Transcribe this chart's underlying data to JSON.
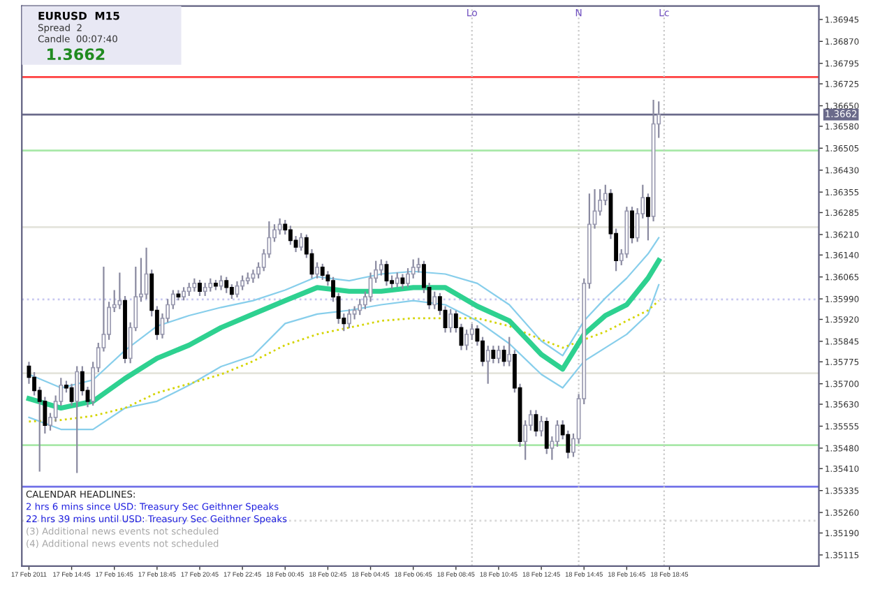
{
  "chart_data": {
    "type": "candlestick",
    "title": "EURUSD  M15",
    "annotations": [
      "Spread  2",
      "Candle  00:07:40",
      "1.3662",
      "CALENDAR HEADLINES:",
      "2 hrs 6 mins since USD: Treasury Sec Geithner Speaks",
      "22 hrs 39 mins until USD: Treasury Sec Geithner Speaks",
      "(3) Additional news events not scheduled",
      "(4) Additional news events not scheduled"
    ],
    "x": [
      "2011-02-17T12:45",
      "2011-02-17T13:00",
      "2011-02-17T13:15",
      "2011-02-17T13:30",
      "2011-02-17T13:45",
      "2011-02-17T14:00",
      "2011-02-17T14:15",
      "2011-02-17T14:30",
      "2011-02-17T14:45",
      "2011-02-17T15:00",
      "2011-02-17T15:15",
      "2011-02-17T15:30",
      "2011-02-17T15:45",
      "2011-02-17T16:00",
      "2011-02-17T16:15",
      "2011-02-17T16:30",
      "2011-02-17T16:45",
      "2011-02-17T17:00",
      "2011-02-17T17:15",
      "2011-02-17T17:30",
      "2011-02-17T17:45",
      "2011-02-17T18:00",
      "2011-02-17T18:15",
      "2011-02-17T18:30",
      "2011-02-17T18:45",
      "2011-02-17T19:00",
      "2011-02-17T19:15",
      "2011-02-17T19:30",
      "2011-02-17T19:45",
      "2011-02-17T20:00",
      "2011-02-17T20:15",
      "2011-02-17T20:30",
      "2011-02-17T20:45",
      "2011-02-17T21:00",
      "2011-02-17T21:15",
      "2011-02-17T21:30",
      "2011-02-17T21:45",
      "2011-02-17T22:00",
      "2011-02-17T22:15",
      "2011-02-17T22:30",
      "2011-02-17T22:45",
      "2011-02-17T23:00",
      "2011-02-17T23:15",
      "2011-02-17T23:30",
      "2011-02-17T23:45",
      "2011-02-18T00:00",
      "2011-02-18T00:15",
      "2011-02-18T00:30",
      "2011-02-18T00:45",
      "2011-02-18T01:00",
      "2011-02-18T01:15",
      "2011-02-18T01:30",
      "2011-02-18T01:45",
      "2011-02-18T02:00",
      "2011-02-18T02:15",
      "2011-02-18T02:30",
      "2011-02-18T02:45",
      "2011-02-18T03:00",
      "2011-02-18T03:15",
      "2011-02-18T03:30",
      "2011-02-18T03:45",
      "2011-02-18T04:00",
      "2011-02-18T04:15",
      "2011-02-18T04:30",
      "2011-02-18T04:45",
      "2011-02-18T05:00",
      "2011-02-18T05:15",
      "2011-02-18T05:30",
      "2011-02-18T05:45",
      "2011-02-18T06:00",
      "2011-02-18T06:15",
      "2011-02-18T06:30",
      "2011-02-18T06:45",
      "2011-02-18T07:00",
      "2011-02-18T07:15",
      "2011-02-18T07:30",
      "2011-02-18T07:45",
      "2011-02-18T08:00",
      "2011-02-18T08:15",
      "2011-02-18T08:30",
      "2011-02-18T08:45",
      "2011-02-18T09:00",
      "2011-02-18T09:15",
      "2011-02-18T09:30",
      "2011-02-18T09:45",
      "2011-02-18T10:00",
      "2011-02-18T10:15",
      "2011-02-18T10:30",
      "2011-02-18T10:45",
      "2011-02-18T11:00",
      "2011-02-18T11:15",
      "2011-02-18T11:30",
      "2011-02-18T11:45",
      "2011-02-18T12:00",
      "2011-02-18T12:15",
      "2011-02-18T12:30",
      "2011-02-18T12:45",
      "2011-02-18T13:00",
      "2011-02-18T13:15",
      "2011-02-18T13:30",
      "2011-02-18T13:45",
      "2011-02-18T14:00",
      "2011-02-18T14:15",
      "2011-02-18T14:30",
      "2011-02-18T14:45",
      "2011-02-18T15:00",
      "2011-02-18T15:15",
      "2011-02-18T15:30",
      "2011-02-18T15:45",
      "2011-02-18T16:00",
      "2011-02-18T16:15",
      "2011-02-18T16:30",
      "2011-02-18T16:45",
      "2011-02-18T17:00",
      "2011-02-18T17:15",
      "2011-02-18T17:30",
      "2011-02-18T17:45",
      "2011-02-18T18:00",
      "2011-02-18T18:15"
    ],
    "ohlc": [
      [
        1.3576,
        1.35775,
        1.357,
        1.35722
      ],
      [
        1.35722,
        1.3574,
        1.3566,
        1.35677
      ],
      [
        1.35677,
        1.3569,
        1.354,
        1.3564
      ],
      [
        1.3564,
        1.35655,
        1.3553,
        1.35558
      ],
      [
        1.35558,
        1.356,
        1.3554,
        1.35585
      ],
      [
        1.35585,
        1.3566,
        1.3557,
        1.3564
      ],
      [
        1.3564,
        1.3572,
        1.35625,
        1.35695
      ],
      [
        1.35695,
        1.3571,
        1.3567,
        1.35686
      ],
      [
        1.35686,
        1.357,
        1.35625,
        1.3564
      ],
      [
        1.3564,
        1.3576,
        1.35395,
        1.35741
      ],
      [
        1.35741,
        1.3576,
        1.3566,
        1.35677
      ],
      [
        1.35677,
        1.3569,
        1.3562,
        1.3564
      ],
      [
        1.3564,
        1.35775,
        1.35625,
        1.35755
      ],
      [
        1.35755,
        1.3584,
        1.3574,
        1.35823
      ],
      [
        1.35823,
        1.361,
        1.3581,
        1.35869
      ],
      [
        1.35869,
        1.3598,
        1.3585,
        1.35961
      ],
      [
        1.35961,
        1.3602,
        1.35945,
        1.3597
      ],
      [
        1.3597,
        1.3608,
        1.35955,
        1.35984
      ],
      [
        1.35984,
        1.36,
        1.3577,
        1.35787
      ],
      [
        1.35787,
        1.3591,
        1.3577,
        1.35892
      ],
      [
        1.35892,
        1.361,
        1.3588,
        1.35997
      ],
      [
        1.35997,
        1.3613,
        1.3598,
        1.36006
      ],
      [
        1.36006,
        1.36165,
        1.3599,
        1.36075
      ],
      [
        1.36075,
        1.3609,
        1.3593,
        1.35951
      ],
      [
        1.35951,
        1.35965,
        1.3585,
        1.35869
      ],
      [
        1.35869,
        1.3594,
        1.35855,
        1.35924
      ],
      [
        1.35924,
        1.3599,
        1.3591,
        1.3597
      ],
      [
        1.3597,
        1.3602,
        1.35955,
        1.36006
      ],
      [
        1.36006,
        1.3602,
        1.35985,
        1.35997
      ],
      [
        1.35997,
        1.3603,
        1.35985,
        1.36016
      ],
      [
        1.36016,
        1.36045,
        1.36,
        1.36029
      ],
      [
        1.36029,
        1.3606,
        1.36015,
        1.36043
      ],
      [
        1.36043,
        1.36055,
        1.36,
        1.36016
      ],
      [
        1.36016,
        1.36045,
        1.36,
        1.36029
      ],
      [
        1.36029,
        1.3606,
        1.36015,
        1.36043
      ],
      [
        1.36043,
        1.36055,
        1.3602,
        1.36034
      ],
      [
        1.36034,
        1.3607,
        1.3602,
        1.36052
      ],
      [
        1.36052,
        1.36065,
        1.3601,
        1.36029
      ],
      [
        1.36029,
        1.3604,
        1.3599,
        1.36006
      ],
      [
        1.36006,
        1.3605,
        1.35995,
        1.36034
      ],
      [
        1.36034,
        1.3607,
        1.3602,
        1.36052
      ],
      [
        1.36052,
        1.3608,
        1.3604,
        1.36061
      ],
      [
        1.36061,
        1.3609,
        1.36045,
        1.36075
      ],
      [
        1.36075,
        1.36115,
        1.3606,
        1.36098
      ],
      [
        1.36098,
        1.3616,
        1.36085,
        1.36144
      ],
      [
        1.36144,
        1.36255,
        1.3613,
        1.36199
      ],
      [
        1.36199,
        1.36245,
        1.36185,
        1.36226
      ],
      [
        1.36226,
        1.36265,
        1.3621,
        1.36245
      ],
      [
        1.36245,
        1.3626,
        1.3621,
        1.36226
      ],
      [
        1.36226,
        1.3624,
        1.36175,
        1.3619
      ],
      [
        1.3619,
        1.36205,
        1.3615,
        1.36167
      ],
      [
        1.36167,
        1.36215,
        1.36155,
        1.36199
      ],
      [
        1.36199,
        1.3621,
        1.3613,
        1.36144
      ],
      [
        1.36144,
        1.3616,
        1.3606,
        1.36075
      ],
      [
        1.36075,
        1.36115,
        1.3606,
        1.36098
      ],
      [
        1.36098,
        1.3611,
        1.36055,
        1.36071
      ],
      [
        1.36071,
        1.36085,
        1.36035,
        1.36052
      ],
      [
        1.36052,
        1.36065,
        1.3598,
        1.35997
      ],
      [
        1.35997,
        1.3601,
        1.35905,
        1.35924
      ],
      [
        1.35924,
        1.3594,
        1.3588,
        1.35906
      ],
      [
        1.35906,
        1.35955,
        1.3589,
        1.35938
      ],
      [
        1.35938,
        1.35965,
        1.3592,
        1.35951
      ],
      [
        1.35951,
        1.3599,
        1.35935,
        1.3597
      ],
      [
        1.3597,
        1.36015,
        1.35955,
        1.35997
      ],
      [
        1.35997,
        1.3608,
        1.3598,
        1.36061
      ],
      [
        1.36061,
        1.3612,
        1.36045,
        1.36089
      ],
      [
        1.36089,
        1.36125,
        1.3607,
        1.36107
      ],
      [
        1.36107,
        1.3612,
        1.36035,
        1.36052
      ],
      [
        1.36052,
        1.3607,
        1.36025,
        1.36043
      ],
      [
        1.36043,
        1.3608,
        1.3603,
        1.36061
      ],
      [
        1.36061,
        1.36075,
        1.36025,
        1.36043
      ],
      [
        1.36043,
        1.36095,
        1.3603,
        1.36075
      ],
      [
        1.36075,
        1.36125,
        1.3606,
        1.36098
      ],
      [
        1.36098,
        1.3613,
        1.3608,
        1.36107
      ],
      [
        1.36107,
        1.3612,
        1.3601,
        1.36029
      ],
      [
        1.36029,
        1.36045,
        1.35955,
        1.3597
      ],
      [
        1.3597,
        1.36015,
        1.35955,
        1.35997
      ],
      [
        1.35997,
        1.3601,
        1.35935,
        1.35951
      ],
      [
        1.35951,
        1.35965,
        1.35875,
        1.35892
      ],
      [
        1.35892,
        1.35955,
        1.35875,
        1.35938
      ],
      [
        1.35938,
        1.3595,
        1.35875,
        1.35892
      ],
      [
        1.35892,
        1.35905,
        1.35815,
        1.35832
      ],
      [
        1.35832,
        1.35885,
        1.35815,
        1.35869
      ],
      [
        1.35869,
        1.35905,
        1.3585,
        1.35887
      ],
      [
        1.35887,
        1.359,
        1.3583,
        1.35846
      ],
      [
        1.35846,
        1.3586,
        1.3576,
        1.35777
      ],
      [
        1.35777,
        1.3583,
        1.357,
        1.35814
      ],
      [
        1.35814,
        1.3583,
        1.3577,
        1.35787
      ],
      [
        1.35787,
        1.3583,
        1.3577,
        1.35814
      ],
      [
        1.35814,
        1.3583,
        1.3576,
        1.35777
      ],
      [
        1.35777,
        1.3586,
        1.3576,
        1.358
      ],
      [
        1.358,
        1.35815,
        1.3567,
        1.35686
      ],
      [
        1.35686,
        1.357,
        1.35485,
        1.35503
      ],
      [
        1.35503,
        1.35575,
        1.3544,
        1.35558
      ],
      [
        1.35558,
        1.3561,
        1.3554,
        1.35594
      ],
      [
        1.35594,
        1.3561,
        1.3552,
        1.35539
      ],
      [
        1.35539,
        1.3559,
        1.3552,
        1.35571
      ],
      [
        1.35571,
        1.35585,
        1.3546,
        1.3548
      ],
      [
        1.3548,
        1.3552,
        1.3544,
        1.35503
      ],
      [
        1.35503,
        1.35575,
        1.35485,
        1.35558
      ],
      [
        1.35558,
        1.35575,
        1.3551,
        1.35526
      ],
      [
        1.35526,
        1.3554,
        1.35445,
        1.35466
      ],
      [
        1.35466,
        1.3553,
        1.3545,
        1.35512
      ],
      [
        1.35512,
        1.35665,
        1.35495,
        1.35649
      ],
      [
        1.35649,
        1.3606,
        1.3563,
        1.36043
      ],
      [
        1.36043,
        1.3635,
        1.36025,
        1.36245
      ],
      [
        1.36245,
        1.36365,
        1.3623,
        1.3629
      ],
      [
        1.3629,
        1.36365,
        1.36275,
        1.36327
      ],
      [
        1.36327,
        1.3638,
        1.3631,
        1.3635
      ],
      [
        1.3635,
        1.36365,
        1.36195,
        1.36213
      ],
      [
        1.36213,
        1.3623,
        1.36085,
        1.36121
      ],
      [
        1.36121,
        1.3616,
        1.36105,
        1.36144
      ],
      [
        1.36144,
        1.36305,
        1.3613,
        1.3629
      ],
      [
        1.3629,
        1.36305,
        1.3618,
        1.36199
      ],
      [
        1.36199,
        1.363,
        1.36185,
        1.36281
      ],
      [
        1.36281,
        1.3638,
        1.36265,
        1.36336
      ],
      [
        1.36336,
        1.3635,
        1.3619,
        1.36272
      ],
      [
        1.36272,
        1.3667,
        1.36255,
        1.36588
      ],
      [
        1.36588,
        1.36665,
        1.3654,
        1.3662
      ]
    ],
    "series": [
      {
        "type": "line",
        "color": "#87ceeb",
        "x": [
          "2011-02-17T12:45",
          "2011-02-17T14:15",
          "2011-02-17T15:45",
          "2011-02-17T17:15",
          "2011-02-17T18:45",
          "2011-02-17T20:15",
          "2011-02-17T21:45",
          "2011-02-17T23:15",
          "2011-02-18T00:45",
          "2011-02-18T02:15",
          "2011-02-18T03:45",
          "2011-02-18T05:15",
          "2011-02-18T06:45",
          "2011-02-18T08:15",
          "2011-02-18T09:45",
          "2011-02-18T11:15",
          "2011-02-18T12:45",
          "2011-02-18T13:45",
          "2011-02-18T14:45",
          "2011-02-18T15:45",
          "2011-02-18T16:45",
          "2011-02-18T17:45",
          "2011-02-18T18:15"
        ],
        "values": [
          1.35732,
          1.35686,
          1.35713,
          1.35814,
          1.35897,
          1.35933,
          1.35961,
          1.35984,
          1.3602,
          1.36066,
          1.36052,
          1.36075,
          1.36084,
          1.36075,
          1.36043,
          1.3597,
          1.35846,
          1.35796,
          1.35915,
          1.35993,
          1.36061,
          1.36144,
          1.36199
        ]
      },
      {
        "type": "line",
        "color": "#87ceeb",
        "x": [
          "2011-02-17T12:45",
          "2011-02-17T14:15",
          "2011-02-17T15:45",
          "2011-02-17T17:15",
          "2011-02-17T18:45",
          "2011-02-17T20:15",
          "2011-02-17T21:45",
          "2011-02-17T23:15",
          "2011-02-18T00:45",
          "2011-02-18T02:15",
          "2011-02-18T03:45",
          "2011-02-18T05:15",
          "2011-02-18T06:45",
          "2011-02-18T08:15",
          "2011-02-18T09:45",
          "2011-02-18T11:15",
          "2011-02-18T12:45",
          "2011-02-18T13:45",
          "2011-02-18T14:45",
          "2011-02-18T15:45",
          "2011-02-18T16:45",
          "2011-02-18T17:45",
          "2011-02-18T18:15"
        ],
        "values": [
          1.35585,
          1.35544,
          1.35544,
          1.35617,
          1.3564,
          1.35695,
          1.35759,
          1.35796,
          1.35906,
          1.35938,
          1.35951,
          1.3597,
          1.35984,
          1.3597,
          1.35915,
          1.35837,
          1.35732,
          1.35686,
          1.35777,
          1.35823,
          1.35869,
          1.35938,
          1.36038
        ]
      },
      {
        "type": "line",
        "color": "#d4d400",
        "line_style": "dotted",
        "x": [
          "2011-02-17T12:45",
          "2011-02-17T14:15",
          "2011-02-17T15:45",
          "2011-02-17T17:15",
          "2011-02-17T18:45",
          "2011-02-17T20:15",
          "2011-02-17T21:45",
          "2011-02-17T23:15",
          "2011-02-18T00:45",
          "2011-02-18T02:15",
          "2011-02-18T03:45",
          "2011-02-18T05:15",
          "2011-02-18T06:45",
          "2011-02-18T08:15",
          "2011-02-18T09:45",
          "2011-02-18T11:15",
          "2011-02-18T12:45",
          "2011-02-18T13:45",
          "2011-02-18T14:45",
          "2011-02-18T15:45",
          "2011-02-18T16:45",
          "2011-02-18T17:45",
          "2011-02-18T18:15"
        ],
        "values": [
          1.35571,
          1.35576,
          1.3559,
          1.35617,
          1.35669,
          1.357,
          1.35732,
          1.35777,
          1.35832,
          1.35869,
          1.35892,
          1.35915,
          1.35924,
          1.35924,
          1.35924,
          1.35897,
          1.35851,
          1.35823,
          1.35851,
          1.35878,
          1.35915,
          1.35951,
          1.35984
        ]
      },
      {
        "type": "line",
        "color": "#2ed190",
        "x": [
          "2011-02-17T12:45",
          "2011-02-17T14:15",
          "2011-02-17T15:45",
          "2011-02-17T17:15",
          "2011-02-17T18:45",
          "2011-02-17T20:15",
          "2011-02-17T21:45",
          "2011-02-17T23:15",
          "2011-02-18T00:45",
          "2011-02-18T02:15",
          "2011-02-18T03:45",
          "2011-02-18T05:15",
          "2011-02-18T06:45",
          "2011-02-18T08:15",
          "2011-02-18T09:45",
          "2011-02-18T11:15",
          "2011-02-18T12:45",
          "2011-02-18T13:45",
          "2011-02-18T14:45",
          "2011-02-18T15:45",
          "2011-02-18T16:45",
          "2011-02-18T17:45",
          "2011-02-18T18:15"
        ],
        "values": [
          1.35649,
          1.35617,
          1.3564,
          1.35718,
          1.35787,
          1.35832,
          1.35892,
          1.35938,
          1.35984,
          1.36029,
          1.36016,
          1.36016,
          1.36029,
          1.36029,
          1.35965,
          1.35915,
          1.358,
          1.3575,
          1.35869,
          1.35933,
          1.3597,
          1.36061,
          1.36121
        ]
      }
    ],
    "ref_lines": [
      {
        "axis": "y",
        "value": 1.36748,
        "color": "#ff4040"
      },
      {
        "axis": "y",
        "value": 1.3662,
        "label": "1.3662",
        "color": "#6a6a8a"
      },
      {
        "axis": "y",
        "value": 1.36497,
        "color": "#a8e8a8"
      },
      {
        "axis": "y",
        "value": 1.36235,
        "color": "#e4e4dc"
      },
      {
        "axis": "y",
        "value": 1.35988,
        "color": "#c8c8f0",
        "line_style": "dotted"
      },
      {
        "axis": "y",
        "value": 1.35736,
        "color": "#e4e4dc"
      },
      {
        "axis": "y",
        "value": 1.3549,
        "color": "#a8e8a8"
      },
      {
        "axis": "y",
        "value": 1.35348,
        "color": "#7070e8"
      },
      {
        "axis": "y",
        "value": 1.35232,
        "color": "#d8d8d8",
        "line_style": "dotted"
      },
      {
        "axis": "x",
        "value": "2011-02-18T09:30",
        "label": "Lo",
        "color": "#c8c8c8",
        "line_style": "dotted"
      },
      {
        "axis": "x",
        "value": "2011-02-18T14:30",
        "label": "N",
        "color": "#c8c8c8",
        "line_style": "dotted"
      },
      {
        "axis": "x",
        "value": "2011-02-18T18:30",
        "label": "Lc",
        "color": "#c8c8c8",
        "line_style": "dotted"
      }
    ],
    "xlim": [
      "2011-02-17T12:25",
      "2011-02-19T01:45"
    ],
    "xticks": [
      {
        "value": "2011-02-17T12:45",
        "label": "17 Feb 2011"
      },
      {
        "value": "2011-02-17T14:45",
        "label": "17 Feb 14:45"
      },
      {
        "value": "2011-02-17T16:45",
        "label": "17 Feb 16:45"
      },
      {
        "value": "2011-02-17T18:45",
        "label": "17 Feb 18:45"
      },
      {
        "value": "2011-02-17T20:45",
        "label": "17 Feb 20:45"
      },
      {
        "value": "2011-02-17T22:45",
        "label": "17 Feb 22:45"
      },
      {
        "value": "2011-02-18T00:45",
        "label": "18 Feb 00:45"
      },
      {
        "value": "2011-02-18T02:45",
        "label": "18 Feb 02:45"
      },
      {
        "value": "2011-02-18T04:45",
        "label": "18 Feb 04:45"
      },
      {
        "value": "2011-02-18T06:45",
        "label": "18 Feb 06:45"
      },
      {
        "value": "2011-02-18T08:45",
        "label": "18 Feb 08:45"
      },
      {
        "value": "2011-02-18T10:45",
        "label": "18 Feb 10:45"
      },
      {
        "value": "2011-02-18T12:45",
        "label": "18 Feb 12:45"
      },
      {
        "value": "2011-02-18T14:45",
        "label": "18 Feb 14:45"
      },
      {
        "value": "2011-02-18T16:45",
        "label": "18 Feb 16:45"
      },
      {
        "value": "2011-02-18T18:45",
        "label": "18 Feb 18:45"
      }
    ],
    "ylim": [
      1.35077,
      1.36991
    ],
    "yticks": [
      {
        "value": 1.36945,
        "label": "1.36945"
      },
      {
        "value": 1.3687,
        "label": "1.36870"
      },
      {
        "value": 1.36795,
        "label": "1.36795"
      },
      {
        "value": 1.36725,
        "label": "1.36725"
      },
      {
        "value": 1.3665,
        "label": "1.36650"
      },
      {
        "value": 1.3658,
        "label": "1.36580"
      },
      {
        "value": 1.36505,
        "label": "1.36505"
      },
      {
        "value": 1.3643,
        "label": "1.36430"
      },
      {
        "value": 1.36355,
        "label": "1.36355"
      },
      {
        "value": 1.36285,
        "label": "1.36285"
      },
      {
        "value": 1.3621,
        "label": "1.36210"
      },
      {
        "value": 1.3614,
        "label": "1.36140"
      },
      {
        "value": 1.36065,
        "label": "1.36065"
      },
      {
        "value": 1.3599,
        "label": "1.35990"
      },
      {
        "value": 1.3592,
        "label": "1.35920"
      },
      {
        "value": 1.35845,
        "label": "1.35845"
      },
      {
        "value": 1.35775,
        "label": "1.35775"
      },
      {
        "value": 1.357,
        "label": "1.35700"
      },
      {
        "value": 1.3563,
        "label": "1.35630"
      },
      {
        "value": 1.35555,
        "label": "1.35555"
      },
      {
        "value": 1.3548,
        "label": "1.35480"
      },
      {
        "value": 1.3541,
        "label": "1.35410"
      },
      {
        "value": 1.35335,
        "label": "1.35335"
      },
      {
        "value": 1.3526,
        "label": "1.35260"
      },
      {
        "value": 1.3519,
        "label": "1.35190"
      },
      {
        "value": 1.35115,
        "label": "1.35115"
      }
    ],
    "grid": false,
    "legend": false
  }
}
